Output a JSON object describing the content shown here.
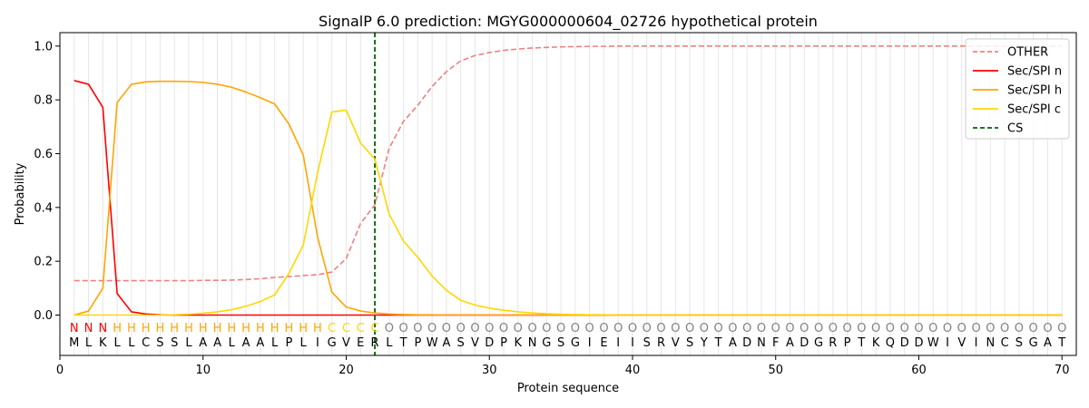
{
  "chart_data": {
    "type": "line",
    "title": "SignalP 6.0 prediction: MGYG000000604_02726 hypothetical protein",
    "xlabel": "Protein sequence",
    "ylabel": "Probability",
    "xlim": [
      0,
      71
    ],
    "ylim": [
      -0.15,
      1.05
    ],
    "xticks": [
      0,
      10,
      20,
      30,
      40,
      50,
      60,
      70
    ],
    "yticks": [
      0.0,
      0.2,
      0.4,
      0.6,
      0.8,
      1.0
    ],
    "ytick_labels": [
      "0.0",
      "0.2",
      "0.4",
      "0.6",
      "0.8",
      "1.0"
    ],
    "grid": "vertical lines at each residue",
    "legend_position": "top-right",
    "sequence": [
      "M",
      "L",
      "K",
      "L",
      "L",
      "C",
      "S",
      "S",
      "L",
      "A",
      "A",
      "L",
      "A",
      "A",
      "L",
      "P",
      "L",
      "I",
      "G",
      "V",
      "E",
      "R",
      "L",
      "T",
      "P",
      "W",
      "A",
      "S",
      "V",
      "D",
      "P",
      "K",
      "N",
      "G",
      "S",
      "G",
      "I",
      "E",
      "I",
      "I",
      "S",
      "R",
      "V",
      "S",
      "Y",
      "T",
      "A",
      "D",
      "N",
      "F",
      "A",
      "D",
      "G",
      "R",
      "P",
      "T",
      "K",
      "Q",
      "D",
      "D",
      "W",
      "I",
      "V",
      "I",
      "N",
      "C",
      "S",
      "G",
      "A",
      "T"
    ],
    "region_labels": [
      "N",
      "N",
      "N",
      "H",
      "H",
      "H",
      "H",
      "H",
      "H",
      "H",
      "H",
      "H",
      "H",
      "H",
      "H",
      "H",
      "H",
      "H",
      "C",
      "C",
      "C",
      "C",
      "O",
      "O",
      "O",
      "O",
      "O",
      "O",
      "O",
      "O",
      "O",
      "O",
      "O",
      "O",
      "O",
      "O",
      "O",
      "O",
      "O",
      "O",
      "O",
      "O",
      "O",
      "O",
      "O",
      "O",
      "O",
      "O",
      "O",
      "O",
      "O",
      "O",
      "O",
      "O",
      "O",
      "O",
      "O",
      "O",
      "O",
      "O",
      "O",
      "O",
      "O",
      "O",
      "O",
      "O",
      "O",
      "O",
      "O",
      "O"
    ],
    "region_label_colors": {
      "N": "#ff0000",
      "H": "#ffa500",
      "C": "#ffd700",
      "O": "#808080"
    },
    "cleavage_site": 22,
    "series": [
      {
        "name": "OTHER",
        "color": "#f08080",
        "dash": true,
        "values": [
          0.128,
          0.128,
          0.128,
          0.128,
          0.128,
          0.128,
          0.128,
          0.128,
          0.128,
          0.129,
          0.129,
          0.13,
          0.132,
          0.135,
          0.14,
          0.143,
          0.147,
          0.15,
          0.16,
          0.21,
          0.34,
          0.41,
          0.62,
          0.72,
          0.78,
          0.85,
          0.905,
          0.945,
          0.965,
          0.976,
          0.984,
          0.989,
          0.993,
          0.995,
          0.997,
          0.998,
          0.999,
          0.999,
          1.0,
          1.0,
          1.0,
          1.0,
          1.0,
          1.0,
          1.0,
          1.0,
          1.0,
          1.0,
          1.0,
          1.0,
          1.0,
          1.0,
          1.0,
          1.0,
          1.0,
          1.0,
          1.0,
          1.0,
          1.0,
          1.0,
          1.0,
          1.0,
          1.0,
          1.0,
          1.0,
          1.0,
          1.0,
          1.0,
          1.0,
          1.0
        ]
      },
      {
        "name": "Sec/SPI n",
        "color": "#ff0000",
        "dash": false,
        "values": [
          0.872,
          0.858,
          0.772,
          0.08,
          0.012,
          0.004,
          0.001,
          0.0,
          0.0,
          0.0,
          0.0,
          0.0,
          0.0,
          0.0,
          0.0,
          0.0,
          0.0,
          0.0,
          0.0,
          0.0,
          0.0,
          0.0,
          0.0,
          0.0,
          0.0,
          0.0,
          0.0,
          0.0,
          0.0,
          0.0,
          0.0,
          0.0,
          0.0,
          0.0,
          0.0,
          0.0,
          0.0,
          0.0,
          0.0,
          0.0,
          0.0,
          0.0,
          0.0,
          0.0,
          0.0,
          0.0,
          0.0,
          0.0,
          0.0,
          0.0,
          0.0,
          0.0,
          0.0,
          0.0,
          0.0,
          0.0,
          0.0,
          0.0,
          0.0,
          0.0,
          0.0,
          0.0,
          0.0,
          0.0,
          0.0,
          0.0,
          0.0,
          0.0,
          0.0,
          0.0
        ]
      },
      {
        "name": "Sec/SPI h",
        "color": "#ffa500",
        "dash": false,
        "values": [
          0.0,
          0.015,
          0.1,
          0.79,
          0.858,
          0.867,
          0.869,
          0.869,
          0.868,
          0.865,
          0.858,
          0.847,
          0.829,
          0.808,
          0.785,
          0.71,
          0.595,
          0.29,
          0.085,
          0.03,
          0.015,
          0.008,
          0.004,
          0.002,
          0.001,
          0.001,
          0.0,
          0.0,
          0.0,
          0.0,
          0.0,
          0.0,
          0.0,
          0.0,
          0.0,
          0.0,
          0.0,
          0.0,
          0.0,
          0.0,
          0.0,
          0.0,
          0.0,
          0.0,
          0.0,
          0.0,
          0.0,
          0.0,
          0.0,
          0.0,
          0.0,
          0.0,
          0.0,
          0.0,
          0.0,
          0.0,
          0.0,
          0.0,
          0.0,
          0.0,
          0.0,
          0.0,
          0.0,
          0.0,
          0.0,
          0.0,
          0.0,
          0.0,
          0.0,
          0.0
        ]
      },
      {
        "name": "Sec/SPI c",
        "color": "#ffd700",
        "dash": false,
        "values": [
          0.0,
          0.0,
          0.0,
          0.0,
          0.0,
          0.0,
          0.0,
          0.001,
          0.003,
          0.007,
          0.012,
          0.02,
          0.033,
          0.05,
          0.075,
          0.155,
          0.26,
          0.53,
          0.755,
          0.762,
          0.64,
          0.58,
          0.375,
          0.275,
          0.215,
          0.145,
          0.092,
          0.055,
          0.037,
          0.026,
          0.018,
          0.012,
          0.008,
          0.005,
          0.003,
          0.002,
          0.001,
          0.001,
          0.0,
          0.0,
          0.0,
          0.0,
          0.0,
          0.0,
          0.0,
          0.0,
          0.0,
          0.0,
          0.0,
          0.0,
          0.0,
          0.0,
          0.0,
          0.0,
          0.0,
          0.0,
          0.0,
          0.0,
          0.0,
          0.0,
          0.0,
          0.0,
          0.0,
          0.0,
          0.0,
          0.0,
          0.0,
          0.0,
          0.0,
          0.0
        ]
      }
    ],
    "legend": [
      {
        "label": "OTHER",
        "color": "#f08080",
        "dash": "dashed"
      },
      {
        "label": "Sec/SPI n",
        "color": "#ff0000",
        "dash": "solid"
      },
      {
        "label": "Sec/SPI h",
        "color": "#ffa500",
        "dash": "solid"
      },
      {
        "label": "Sec/SPI c",
        "color": "#ffd700",
        "dash": "solid"
      },
      {
        "label": "CS",
        "color": "#006400",
        "dash": "dashed"
      }
    ]
  }
}
